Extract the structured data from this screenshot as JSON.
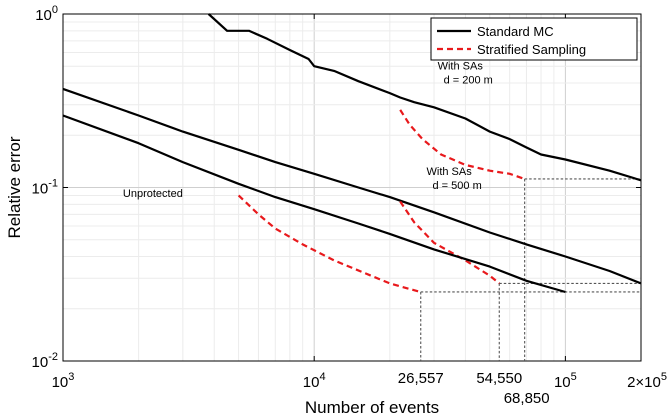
{
  "chart_data": {
    "type": "line",
    "xscale": "log",
    "yscale": "log",
    "xlim": [
      1000,
      200000
    ],
    "ylim": [
      0.01,
      1
    ],
    "xlabel": "Number of events",
    "ylabel": "Relative error",
    "x_tick_labels": [
      "10",
      "10",
      "10",
      "2×10"
    ],
    "x_tick_exponents": [
      "3",
      "4",
      "5",
      "5"
    ],
    "x_tick_values": [
      1000,
      10000,
      100000,
      200000
    ],
    "y_tick_labels": [
      "10",
      "10",
      "10"
    ],
    "y_tick_exponents": [
      "0",
      "-1",
      "-2"
    ],
    "y_tick_values": [
      1,
      0.1,
      0.01
    ],
    "grid": true,
    "legend": {
      "position": "top-right",
      "entries": [
        {
          "label": "Standard MC",
          "color": "#000000",
          "dash": "solid"
        },
        {
          "label": "Stratified Sampling",
          "color": "#e8191c",
          "dash": "dashed"
        }
      ]
    },
    "series": [
      {
        "group": "d = 200 m",
        "kind": "Standard MC",
        "color": "#000000",
        "points": [
          [
            3800,
            1.0
          ],
          [
            4500,
            0.8
          ],
          [
            5500,
            0.8
          ],
          [
            6500,
            0.72
          ],
          [
            8000,
            0.62
          ],
          [
            9500,
            0.55
          ],
          [
            10000,
            0.5
          ],
          [
            12000,
            0.47
          ],
          [
            15000,
            0.41
          ],
          [
            20000,
            0.35
          ],
          [
            22000,
            0.33
          ],
          [
            25000,
            0.31
          ],
          [
            30000,
            0.29
          ],
          [
            40000,
            0.25
          ],
          [
            50000,
            0.21
          ],
          [
            60000,
            0.19
          ],
          [
            70000,
            0.17
          ],
          [
            80000,
            0.155
          ],
          [
            100000,
            0.145
          ],
          [
            150000,
            0.125
          ],
          [
            200000,
            0.11
          ]
        ]
      },
      {
        "group": "d = 200 m",
        "kind": "Stratified Sampling",
        "color": "#e8191c",
        "points": [
          [
            22000,
            0.28
          ],
          [
            24000,
            0.23
          ],
          [
            27000,
            0.19
          ],
          [
            32000,
            0.155
          ],
          [
            40000,
            0.135
          ],
          [
            50000,
            0.125
          ],
          [
            60000,
            0.12
          ],
          [
            68850,
            0.112
          ]
        ]
      },
      {
        "group": "d = 500 m",
        "kind": "Standard MC",
        "color": "#000000",
        "points": [
          [
            1000,
            0.37
          ],
          [
            2000,
            0.26
          ],
          [
            3000,
            0.21
          ],
          [
            5000,
            0.165
          ],
          [
            7000,
            0.14
          ],
          [
            10000,
            0.12
          ],
          [
            15000,
            0.1
          ],
          [
            20000,
            0.088
          ],
          [
            30000,
            0.072
          ],
          [
            50000,
            0.055
          ],
          [
            70000,
            0.047
          ],
          [
            100000,
            0.04
          ],
          [
            150000,
            0.033
          ],
          [
            200000,
            0.028
          ]
        ]
      },
      {
        "group": "d = 500 m",
        "kind": "Stratified Sampling",
        "color": "#e8191c",
        "points": [
          [
            22000,
            0.083
          ],
          [
            25000,
            0.063
          ],
          [
            30000,
            0.048
          ],
          [
            40000,
            0.038
          ],
          [
            50000,
            0.031
          ],
          [
            54550,
            0.028
          ]
        ]
      },
      {
        "group": "Unprotected",
        "kind": "Standard MC",
        "color": "#000000",
        "points": [
          [
            1000,
            0.26
          ],
          [
            2000,
            0.18
          ],
          [
            3000,
            0.14
          ],
          [
            5000,
            0.105
          ],
          [
            7000,
            0.088
          ],
          [
            10000,
            0.075
          ],
          [
            15000,
            0.062
          ],
          [
            20000,
            0.054
          ],
          [
            30000,
            0.044
          ],
          [
            50000,
            0.035
          ],
          [
            70000,
            0.029
          ],
          [
            100000,
            0.025
          ]
        ]
      },
      {
        "group": "Unprotected",
        "kind": "Stratified Sampling",
        "color": "#e8191c",
        "points": [
          [
            5000,
            0.09
          ],
          [
            6000,
            0.07
          ],
          [
            7000,
            0.058
          ],
          [
            9000,
            0.047
          ],
          [
            12000,
            0.038
          ],
          [
            16000,
            0.032
          ],
          [
            20000,
            0.028
          ],
          [
            24000,
            0.026
          ],
          [
            26557,
            0.025
          ]
        ]
      }
    ],
    "annotations": [
      {
        "lines": [
          "With SAs",
          "d = 200 m"
        ],
        "x": 31000,
        "y": 0.48
      },
      {
        "lines": [
          "With SAs",
          "d = 500 m"
        ],
        "x": 28000,
        "y": 0.118
      },
      {
        "lines": [
          "Unprotected"
        ],
        "x": 3000,
        "y": 0.088
      }
    ],
    "markers": [
      {
        "x": 26557,
        "y": 0.025,
        "label": "26,557"
      },
      {
        "x": 54550,
        "y": 0.028,
        "label": "54,550"
      },
      {
        "x": 68850,
        "y": 0.112,
        "label": "68,850"
      }
    ],
    "marker_levels": [
      0.112,
      0.028,
      0.025
    ]
  }
}
